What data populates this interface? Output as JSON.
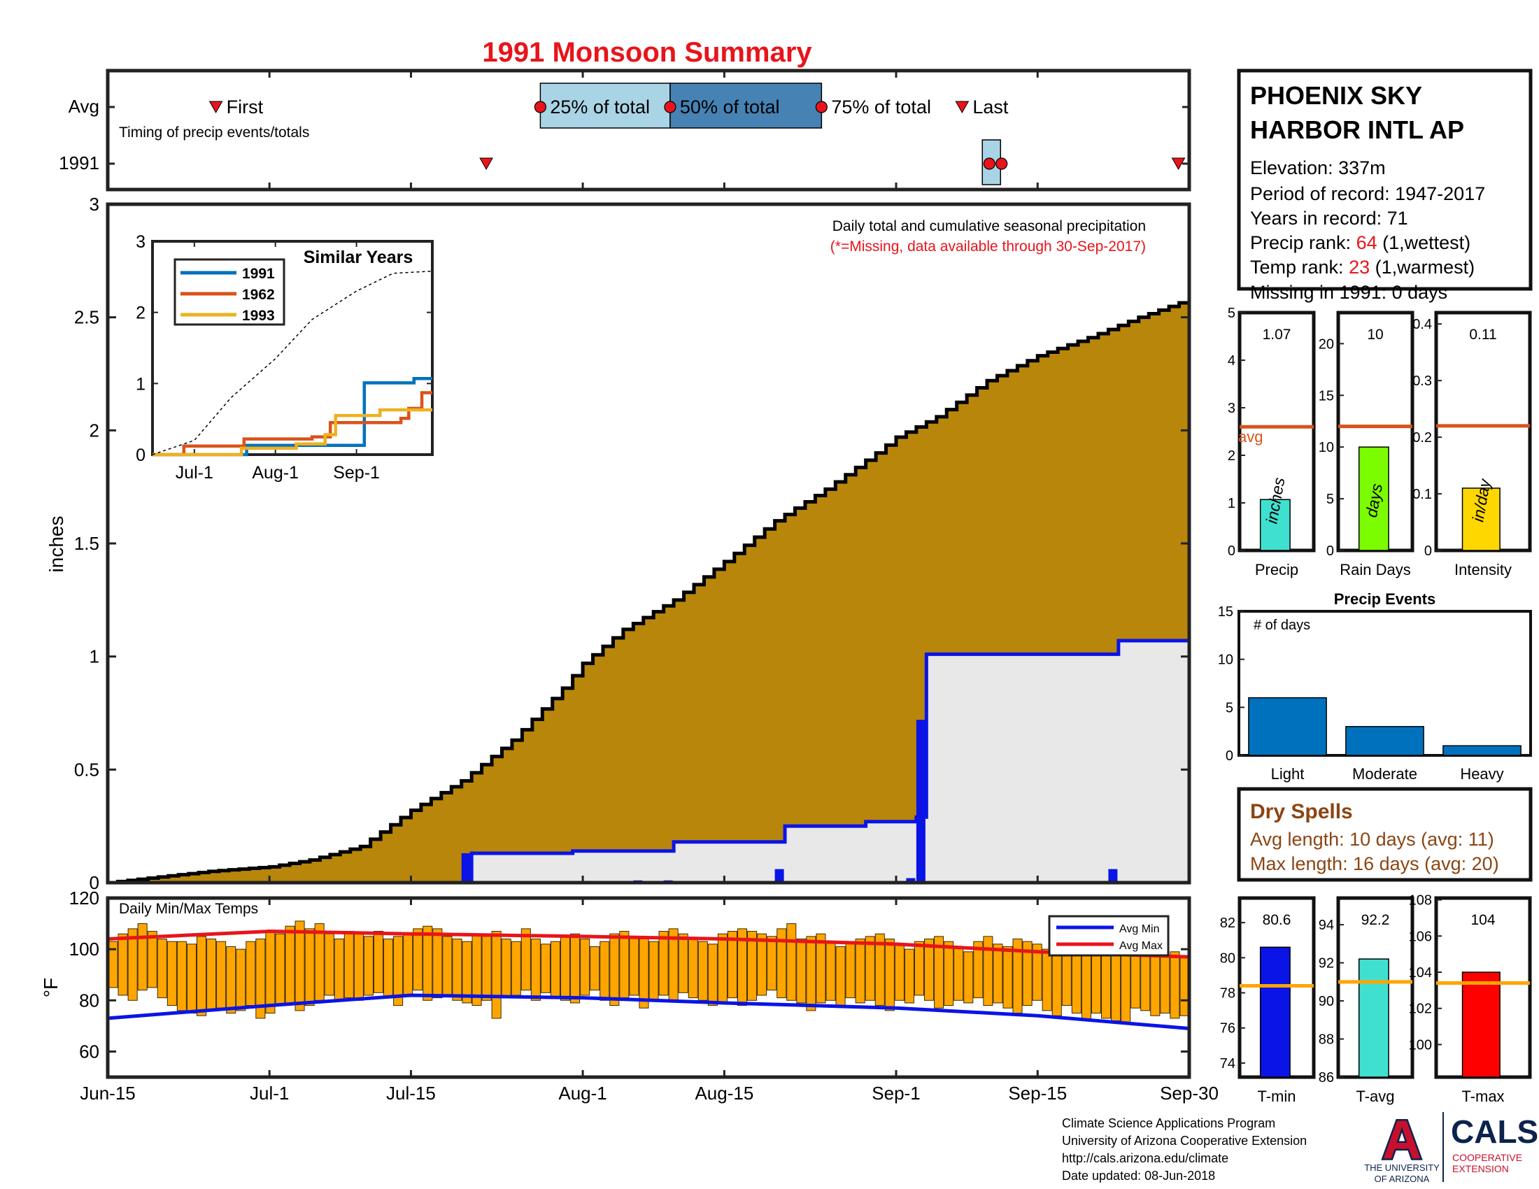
{
  "title": "1991 Monsoon Summary",
  "timing": {
    "avg_label": "Avg",
    "year_label": "1991",
    "subtitle": "Timing of precip events/totals",
    "first_label": "First",
    "last_label": "Last",
    "pct25_label": "25% of total",
    "pct50_label": "50% of total",
    "pct75_label": "75% of total",
    "avg_first": 10,
    "avg_p25": 40,
    "avg_p50": 52,
    "avg_p75": 66,
    "avg_last": 79,
    "yr_first": 35,
    "yr_p25": 81,
    "yr_p50": 81,
    "yr_p75": 82,
    "yr_last": 99,
    "colors": {
      "marker": "#e8141b",
      "box25": "#a9d4e6",
      "box50": "#4682b4"
    }
  },
  "station": {
    "name_line1": "PHOENIX SKY",
    "name_line2": "HARBOR INTL AP",
    "elevation": "Elevation: 337m",
    "period": "Period of record: 1947-2017",
    "years": "Years in record: 71",
    "precip_rank_label": "Precip rank: ",
    "precip_rank_value": "64",
    "precip_rank_suffix": " (1,wettest)",
    "temp_rank_label": "Temp rank: ",
    "temp_rank_value": "23",
    "temp_rank_suffix": " (1,warmest)",
    "missing": "Missing in 1991: 0 days"
  },
  "main_chart": {
    "ylabel": "inches",
    "annotation_line1": "Daily total and cumulative seasonal precipitation",
    "annotation_line2": "(*=Missing, data available through 30-Sep-2017)",
    "yticks": [
      "0",
      "0.5",
      "1",
      "1.5",
      "2",
      "2.5",
      "3"
    ],
    "colors": {
      "avg_fill": "#b8860b",
      "year_fill": "#e8e8e8",
      "year_line": "#0a14e6",
      "daily_bar": "#0a14e6"
    }
  },
  "inset": {
    "title": "Similar Years",
    "yticks": [
      "0",
      "1",
      "2",
      "3"
    ],
    "xticks": [
      "Jul-1",
      "Aug-1",
      "Sep-1"
    ],
    "legend": [
      {
        "name": "1991",
        "color": "#0072bd"
      },
      {
        "name": "1962",
        "color": "#d95319"
      },
      {
        "name": "1993",
        "color": "#edb120"
      }
    ]
  },
  "temp_chart": {
    "title": "Daily Min/Max Temps",
    "ylabel": "°F",
    "yticks": [
      "60",
      "80",
      "100",
      "120"
    ],
    "legend_min": "Avg Min",
    "legend_max": "Avg Max",
    "colors": {
      "bar": "#ffa500",
      "avg_min": "#0a14e6",
      "avg_max": "#e8141b"
    }
  },
  "xaxis": {
    "ticks": [
      "Jun-15",
      "Jul-1",
      "Jul-15",
      "Aug-1",
      "Aug-15",
      "Sep-1",
      "Sep-15",
      "Sep-30"
    ]
  },
  "chart_data": [
    {
      "type": "area",
      "title": "Daily total and cumulative seasonal precipitation",
      "ylabel": "inches",
      "x_start": "Jun-15",
      "x_end": "Sep-30",
      "ylim": [
        0,
        3
      ],
      "series": [
        {
          "name": "",
          "points": [
            [
              "Jun-15",
              0
            ],
            [
              "Jun-25",
              0.05
            ],
            [
              "Jul-1",
              0.07
            ],
            [
              "Jul-5",
              0.1
            ],
            [
              "Jul-10",
              0.16
            ],
            [
              "Jul-15",
              0.32
            ],
            [
              "Jul-20",
              0.45
            ],
            [
              "Jul-25",
              0.63
            ],
            [
              "Jul-30",
              0.86
            ],
            [
              "Aug-1",
              0.97
            ],
            [
              "Aug-5",
              1.12
            ],
            [
              "Aug-10",
              1.25
            ],
            [
              "Aug-15",
              1.42
            ],
            [
              "Aug-20",
              1.6
            ],
            [
              "Aug-25",
              1.74
            ],
            [
              "Aug-30",
              1.9
            ],
            [
              "Sep-1",
              1.97
            ],
            [
              "Sep-5",
              2.06
            ],
            [
              "Sep-10",
              2.22
            ],
            [
              "Sep-15",
              2.33
            ],
            [
              "Sep-20",
              2.41
            ],
            [
              "Sep-25",
              2.5
            ],
            [
              "Sep-30",
              2.58
            ]
          ]
        },
        {
          "name": "",
          "points": [
            [
              "Jun-15",
              0
            ],
            [
              "Jul-20",
              0
            ],
            [
              "Jul-21",
              0.13
            ],
            [
              "Jul-31",
              0.14
            ],
            [
              "Aug-10",
              0.18
            ],
            [
              "Aug-21",
              0.25
            ],
            [
              "Aug-29",
              0.27
            ],
            [
              "Sep-3",
              0.29
            ],
            [
              "Sep-4",
              1.01
            ],
            [
              "Sep-23",
              1.07
            ],
            [
              "Sep-30",
              1.07
            ]
          ]
        }
      ],
      "daily_bars": [
        [
          "Jul-21",
          0.13
        ],
        [
          "Aug-7",
          0.01
        ],
        [
          "Aug-10",
          0.01
        ],
        [
          "Aug-21",
          0.06
        ],
        [
          "Sep-3",
          0.02
        ],
        [
          "Sep-4",
          0.72
        ],
        [
          "Sep-23",
          0.06
        ]
      ]
    },
    {
      "type": "line",
      "title": "Similar Years",
      "xticks": [
        "Jul-1",
        "Aug-1",
        "Sep-1"
      ],
      "ylim": [
        0,
        3
      ],
      "series": [
        {
          "name": "1991",
          "points": [
            [
              "Jun-15",
              0
            ],
            [
              "Jul-21",
              0.13
            ],
            [
              "Sep-4",
              1.01
            ],
            [
              "Sep-23",
              1.07
            ],
            [
              "Sep-30",
              1.07
            ]
          ]
        },
        {
          "name": "1962",
          "points": [
            [
              "Jun-15",
              0
            ],
            [
              "Jun-27",
              0.12
            ],
            [
              "Jul-20",
              0.22
            ],
            [
              "Aug-15",
              0.25
            ],
            [
              "Aug-22",
              0.45
            ],
            [
              "Sep-18",
              0.51
            ],
            [
              "Sep-21",
              0.65
            ],
            [
              "Sep-26",
              0.87
            ],
            [
              "Sep-30",
              0.87
            ]
          ]
        },
        {
          "name": "1993",
          "points": [
            [
              "Jun-15",
              0
            ],
            [
              "Jul-19",
              0.09
            ],
            [
              "Aug-9",
              0.15
            ],
            [
              "Aug-20",
              0.28
            ],
            [
              "Aug-24",
              0.55
            ],
            [
              "Sep-10",
              0.63
            ],
            [
              "Sep-22",
              0.63
            ],
            [
              "Sep-24",
              0.63
            ],
            [
              "Sep-30",
              0.63
            ]
          ]
        },
        {
          "name": "",
          "points": [
            [
              "Jun-15",
              0
            ],
            [
              "Jul-1",
              0.2
            ],
            [
              "Jul-15",
              0.8
            ],
            [
              "Aug-1",
              1.35
            ],
            [
              "Aug-15",
              1.9
            ],
            [
              "Sep-1",
              2.3
            ],
            [
              "Sep-15",
              2.55
            ],
            [
              "Sep-30",
              2.58
            ]
          ]
        }
      ]
    },
    {
      "type": "bar",
      "title": "Daily Min/Max Temps",
      "ylabel": "°F",
      "ylim": [
        50,
        120
      ],
      "x_start": "Jun-15",
      "x_end": "Sep-30",
      "tmax": [
        103,
        106,
        108,
        110,
        107,
        104,
        103,
        103,
        102,
        105,
        104,
        103,
        101,
        100,
        103,
        104,
        107,
        106,
        109,
        111,
        108,
        110,
        106,
        104,
        107,
        106,
        105,
        107,
        104,
        105,
        106,
        108,
        109,
        108,
        105,
        104,
        103,
        106,
        105,
        107,
        104,
        103,
        108,
        104,
        102,
        103,
        105,
        106,
        104,
        101,
        103,
        106,
        107,
        105,
        104,
        103,
        107,
        108,
        106,
        104,
        103,
        102,
        106,
        107,
        108,
        107,
        106,
        105,
        108,
        110,
        104,
        105,
        106,
        103,
        101,
        103,
        104,
        105,
        106,
        104,
        102,
        100,
        103,
        104,
        105,
        103,
        101,
        99,
        103,
        105,
        102,
        101,
        104,
        103,
        102,
        100,
        99,
        101,
        100,
        98,
        99,
        100,
        98,
        101,
        99,
        100,
        98,
        97,
        99,
        97
      ],
      "tmin": [
        85,
        82,
        80,
        84,
        85,
        81,
        78,
        76,
        75,
        74,
        76,
        77,
        75,
        76,
        78,
        73,
        75,
        78,
        79,
        76,
        78,
        80,
        82,
        80,
        81,
        80,
        82,
        83,
        81,
        78,
        82,
        84,
        80,
        81,
        82,
        80,
        79,
        78,
        80,
        73,
        81,
        82,
        84,
        80,
        83,
        81,
        80,
        79,
        82,
        84,
        80,
        78,
        81,
        82,
        77,
        80,
        82,
        80,
        83,
        81,
        80,
        78,
        79,
        81,
        78,
        80,
        82,
        84,
        81,
        80,
        79,
        76,
        79,
        80,
        78,
        81,
        79,
        80,
        78,
        76,
        80,
        79,
        82,
        80,
        77,
        78,
        80,
        79,
        81,
        78,
        79,
        77,
        75,
        78,
        80,
        76,
        74,
        78,
        75,
        72,
        75,
        73,
        72,
        71,
        77,
        76,
        74,
        75,
        73,
        74
      ],
      "avg_min_points": [
        [
          "Jun-15",
          73
        ],
        [
          "Jul-1",
          78
        ],
        [
          "Jul-15",
          82
        ],
        [
          "Aug-1",
          81
        ],
        [
          "Aug-15",
          79
        ],
        [
          "Sep-1",
          77
        ],
        [
          "Sep-15",
          74
        ],
        [
          "Sep-30",
          69
        ]
      ],
      "avg_max_points": [
        [
          "Jun-15",
          104
        ],
        [
          "Jul-1",
          107
        ],
        [
          "Jul-15",
          106
        ],
        [
          "Aug-1",
          105
        ],
        [
          "Aug-15",
          104
        ],
        [
          "Sep-1",
          102
        ],
        [
          "Sep-15",
          99
        ],
        [
          "Sep-30",
          97
        ]
      ]
    },
    {
      "type": "bar",
      "categories": [
        "Precip",
        "Rain Days",
        "Intensity"
      ],
      "values": [
        1.07,
        10,
        0.11
      ],
      "value_labels": [
        "1.07",
        "10",
        "0.11"
      ],
      "averages": [
        2.6,
        12,
        0.22
      ],
      "avg_label": "avg",
      "units": [
        "inches",
        "days",
        "in/day"
      ],
      "ylims": [
        [
          0,
          5
        ],
        [
          0,
          23
        ],
        [
          0,
          0.42
        ]
      ],
      "yticks": [
        [
          "0",
          "1",
          "2",
          "3",
          "4",
          "5"
        ],
        [
          "0",
          "5",
          "10",
          "15",
          "20"
        ],
        [
          "0",
          "0.1",
          "0.2",
          "0.3",
          "0.4"
        ]
      ],
      "colors": [
        "#40e0d0",
        "#7cfc00",
        "#ffd700"
      ],
      "avg_color": "#d95319"
    },
    {
      "type": "bar",
      "title": "Precip Events",
      "ylabel": "# of days",
      "categories": [
        "Light",
        "Moderate",
        "Heavy"
      ],
      "values": [
        6,
        3,
        1
      ],
      "ylim": [
        0,
        15
      ],
      "yticks": [
        "0",
        "5",
        "10",
        "15"
      ],
      "color": "#0072bd"
    },
    {
      "type": "bar",
      "categories": [
        "T-min",
        "T-avg",
        "T-max"
      ],
      "values": [
        80.6,
        92.2,
        104
      ],
      "value_labels": [
        "80.6",
        "92.2",
        "104"
      ],
      "averages": [
        78.4,
        91,
        103.4
      ],
      "ylims": [
        [
          73.2,
          83.4
        ],
        [
          86,
          95.4
        ],
        [
          98.2,
          108.1
        ]
      ],
      "yticks": [
        [
          "74",
          "76",
          "78",
          "80",
          "82"
        ],
        [
          "86",
          "88",
          "90",
          "92",
          "94"
        ],
        [
          "100",
          "102",
          "104",
          "106",
          "108"
        ]
      ],
      "colors": [
        "#0a14e6",
        "#40e0d0",
        "#ff0000"
      ],
      "avg_color": "#ffa500"
    }
  ],
  "dry_spells": {
    "title": "Dry Spells",
    "avg_length": "Avg length: 10 days (avg: 11)",
    "max_length": "Max length: 16 days (avg: 20)",
    "color": "#8b4513"
  },
  "footer": {
    "line1": "Climate Science Applications Program",
    "line2": "University of Arizona Cooperative Extension",
    "line3": "http://cals.arizona.edu/climate",
    "line4": " Date updated: 08-Jun-2018"
  },
  "logos": {
    "ua_letter": "A",
    "ua_line1": "THE UNIVERSITY",
    "ua_line2": "OF ARIZONA",
    "cals": "CALS",
    "cals_line1": "COOPERATIVE",
    "cals_line2": "EXTENSION"
  }
}
